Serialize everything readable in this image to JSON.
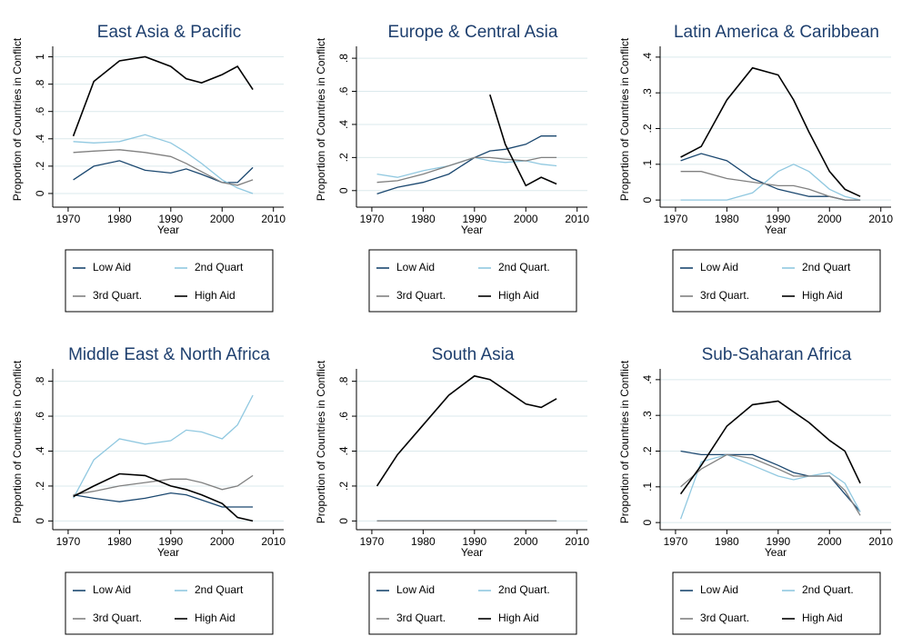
{
  "chart_data": [
    {
      "type": "line",
      "title": "East Asia & Pacific",
      "xlabel": "Year",
      "ylabel": "Proportion of Countries in Conflict",
      "x": [
        1971,
        1975,
        1980,
        1985,
        1990,
        1993,
        1996,
        2000,
        2003,
        2006
      ],
      "xlim": [
        1967,
        2012
      ],
      "xticks": [
        1970,
        1980,
        1990,
        2000,
        2010
      ],
      "ylim": [
        -0.1,
        1.05
      ],
      "yticks": [
        0,
        {
          "value": 0.2,
          "label": ".2"
        },
        {
          "value": 0.4,
          "label": ".4"
        },
        {
          "value": 0.6,
          "label": ".6"
        },
        {
          "value": 0.8,
          "label": ".8"
        },
        1
      ],
      "grid": true,
      "series": [
        {
          "name": "Low Aid",
          "color": "#1a476f",
          "values": [
            0.1,
            0.2,
            0.24,
            0.17,
            0.15,
            0.18,
            0.14,
            0.08,
            0.08,
            0.19
          ]
        },
        {
          "name": "2nd Quart",
          "color": "#90c8e0",
          "values": [
            0.38,
            0.37,
            0.38,
            0.43,
            0.37,
            0.3,
            0.22,
            0.1,
            0.04,
            0.0
          ]
        },
        {
          "name": "3rd Quart.",
          "color": "#808080",
          "values": [
            0.3,
            0.31,
            0.32,
            0.3,
            0.27,
            0.22,
            0.16,
            0.08,
            0.06,
            0.1
          ]
        },
        {
          "name": "High Aid",
          "color": "#000000",
          "values": [
            0.42,
            0.82,
            0.97,
            1.0,
            0.93,
            0.84,
            0.81,
            0.87,
            0.93,
            0.76
          ]
        }
      ]
    },
    {
      "type": "line",
      "title": "Europe & Central Asia",
      "xlabel": "Year",
      "ylabel": "Proportion of Countries in Conflict",
      "x": [
        1971,
        1975,
        1980,
        1985,
        1990,
        1993,
        1996,
        2000,
        2003,
        2006
      ],
      "xlim": [
        1967,
        2012
      ],
      "xticks": [
        1970,
        1980,
        1990,
        2000,
        2010
      ],
      "ylim": [
        -0.1,
        0.85
      ],
      "yticks": [
        0,
        {
          "value": 0.2,
          "label": ".2"
        },
        {
          "value": 0.4,
          "label": ".4"
        },
        {
          "value": 0.6,
          "label": ".6"
        },
        {
          "value": 0.8,
          "label": ".8"
        }
      ],
      "grid": true,
      "series": [
        {
          "name": "Low Aid",
          "color": "#1a476f",
          "values": [
            -0.02,
            0.02,
            0.05,
            0.1,
            0.2,
            0.24,
            0.25,
            0.28,
            0.33,
            0.33
          ]
        },
        {
          "name": "2nd Quart.",
          "color": "#90c8e0",
          "values": [
            0.1,
            0.08,
            0.12,
            0.15,
            0.2,
            0.18,
            0.17,
            0.18,
            0.16,
            0.15
          ]
        },
        {
          "name": "3rd Quart.",
          "color": "#808080",
          "values": [
            0.05,
            0.06,
            0.1,
            0.15,
            0.2,
            0.2,
            0.19,
            0.18,
            0.2,
            0.2
          ]
        },
        {
          "name": "High Aid",
          "color": "#000000",
          "values": [
            null,
            null,
            null,
            null,
            null,
            0.58,
            0.28,
            0.03,
            0.08,
            0.04
          ]
        }
      ]
    },
    {
      "type": "line",
      "title": "Latin America & Caribbean",
      "xlabel": "Year",
      "ylabel": "Proportion of Countries in Conflict",
      "x": [
        1971,
        1975,
        1980,
        1985,
        1990,
        1993,
        1996,
        2000,
        2003,
        2006
      ],
      "xlim": [
        1967,
        2012
      ],
      "xticks": [
        1970,
        1980,
        1990,
        2000,
        2010
      ],
      "ylim": [
        -0.02,
        0.42
      ],
      "yticks": [
        0,
        {
          "value": 0.1,
          "label": ".1"
        },
        {
          "value": 0.2,
          "label": ".2"
        },
        {
          "value": 0.3,
          "label": ".3"
        },
        {
          "value": 0.4,
          "label": ".4"
        }
      ],
      "grid": true,
      "series": [
        {
          "name": "Low Aid",
          "color": "#1a476f",
          "values": [
            0.11,
            0.13,
            0.11,
            0.06,
            0.03,
            0.02,
            0.01,
            0.01,
            0.0,
            0.0
          ]
        },
        {
          "name": "2nd Quart",
          "color": "#90c8e0",
          "values": [
            0.0,
            0.0,
            0.0,
            0.02,
            0.08,
            0.1,
            0.08,
            0.03,
            0.01,
            0.0
          ]
        },
        {
          "name": "3rd Quart.",
          "color": "#808080",
          "values": [
            0.08,
            0.08,
            0.06,
            0.05,
            0.04,
            0.04,
            0.03,
            0.01,
            0.0,
            0.0
          ]
        },
        {
          "name": "High Aid",
          "color": "#000000",
          "values": [
            0.12,
            0.15,
            0.28,
            0.37,
            0.35,
            0.28,
            0.19,
            0.08,
            0.03,
            0.01
          ]
        }
      ]
    },
    {
      "type": "line",
      "title": "Middle East & North Africa",
      "xlabel": "Year",
      "ylabel": "Proportion of Countries in Conflict",
      "x": [
        1971,
        1975,
        1980,
        1985,
        1990,
        1993,
        1996,
        2000,
        2003,
        2006
      ],
      "xlim": [
        1967,
        2012
      ],
      "xticks": [
        1970,
        1980,
        1990,
        2000,
        2010
      ],
      "ylim": [
        -0.05,
        0.85
      ],
      "yticks": [
        0,
        {
          "value": 0.2,
          "label": ".2"
        },
        {
          "value": 0.4,
          "label": ".4"
        },
        {
          "value": 0.6,
          "label": ".6"
        },
        {
          "value": 0.8,
          "label": ".8"
        }
      ],
      "grid": true,
      "series": [
        {
          "name": "Low Aid",
          "color": "#1a476f",
          "values": [
            0.15,
            0.13,
            0.11,
            0.13,
            0.16,
            0.15,
            0.12,
            0.08,
            0.08,
            0.08
          ]
        },
        {
          "name": "2nd Quart",
          "color": "#90c8e0",
          "values": [
            0.13,
            0.35,
            0.47,
            0.44,
            0.46,
            0.52,
            0.51,
            0.47,
            0.55,
            0.72
          ]
        },
        {
          "name": "3rd Quart.",
          "color": "#808080",
          "values": [
            0.15,
            0.17,
            0.2,
            0.22,
            0.24,
            0.24,
            0.22,
            0.18,
            0.2,
            0.26
          ]
        },
        {
          "name": "High Aid",
          "color": "#000000",
          "values": [
            0.14,
            0.2,
            0.27,
            0.26,
            0.2,
            0.18,
            0.15,
            0.1,
            0.02,
            0.0
          ]
        }
      ]
    },
    {
      "type": "line",
      "title": "South Asia",
      "xlabel": "Year",
      "ylabel": "Proportion of Countries in Conflict",
      "x": [
        1971,
        1975,
        1980,
        1985,
        1990,
        1993,
        1996,
        2000,
        2003,
        2006
      ],
      "xlim": [
        1967,
        2012
      ],
      "xticks": [
        1970,
        1980,
        1990,
        2000,
        2010
      ],
      "ylim": [
        -0.05,
        0.85
      ],
      "yticks": [
        0,
        {
          "value": 0.2,
          "label": ".2"
        },
        {
          "value": 0.4,
          "label": ".4"
        },
        {
          "value": 0.6,
          "label": ".6"
        },
        {
          "value": 0.8,
          "label": ".8"
        }
      ],
      "grid": true,
      "series": [
        {
          "name": "Low Aid",
          "color": "#1a476f",
          "values": [
            0,
            0,
            0,
            0,
            0,
            0,
            0,
            0,
            0,
            0
          ]
        },
        {
          "name": "2nd Quart.",
          "color": "#90c8e0",
          "values": [
            0,
            0,
            0,
            0,
            0,
            0,
            0,
            0,
            0,
            0
          ]
        },
        {
          "name": "3rd Quart.",
          "color": "#808080",
          "values": [
            0,
            0,
            0,
            0,
            0,
            0,
            0,
            0,
            0,
            0
          ]
        },
        {
          "name": "High Aid",
          "color": "#000000",
          "values": [
            0.2,
            0.38,
            0.55,
            0.72,
            0.83,
            0.81,
            0.75,
            0.67,
            0.65,
            0.7
          ]
        }
      ]
    },
    {
      "type": "line",
      "title": "Sub-Saharan Africa",
      "xlabel": "Year",
      "ylabel": "Proportion of Countries in Conflict",
      "x": [
        1971,
        1975,
        1980,
        1985,
        1990,
        1993,
        1996,
        2000,
        2003,
        2006
      ],
      "xlim": [
        1967,
        2012
      ],
      "xticks": [
        1970,
        1980,
        1990,
        2000,
        2010
      ],
      "ylim": [
        -0.02,
        0.42
      ],
      "yticks": [
        0,
        {
          "value": 0.1,
          "label": ".1"
        },
        {
          "value": 0.2,
          "label": ".2"
        },
        {
          "value": 0.3,
          "label": ".3"
        },
        {
          "value": 0.4,
          "label": ".4"
        }
      ],
      "grid": true,
      "series": [
        {
          "name": "Low Aid",
          "color": "#1a476f",
          "values": [
            0.2,
            0.19,
            0.19,
            0.19,
            0.16,
            0.14,
            0.13,
            0.13,
            0.08,
            0.03
          ]
        },
        {
          "name": "2nd Quart.",
          "color": "#90c8e0",
          "values": [
            0.01,
            0.17,
            0.19,
            0.16,
            0.13,
            0.12,
            0.13,
            0.14,
            0.11,
            0.03
          ]
        },
        {
          "name": "3rd Quart.",
          "color": "#808080",
          "values": [
            0.1,
            0.15,
            0.19,
            0.18,
            0.15,
            0.13,
            0.13,
            0.13,
            0.09,
            0.02
          ]
        },
        {
          "name": "High Aid",
          "color": "#000000",
          "values": [
            0.08,
            0.16,
            0.27,
            0.33,
            0.34,
            0.31,
            0.28,
            0.23,
            0.2,
            0.11
          ]
        }
      ]
    }
  ]
}
